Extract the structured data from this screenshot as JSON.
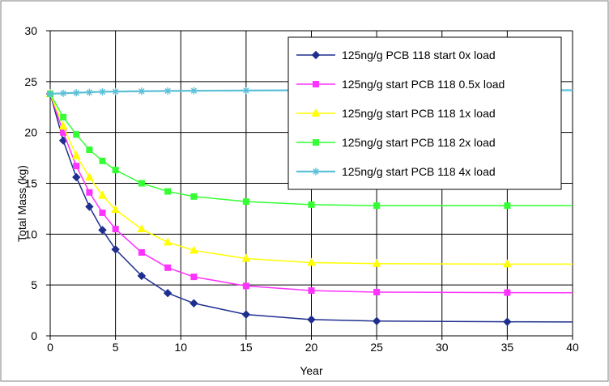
{
  "chart_data": {
    "type": "line",
    "title": "",
    "xlabel": "Year",
    "ylabel": "Total Mass (kg)",
    "xlim": [
      0,
      40
    ],
    "ylim": [
      0,
      30
    ],
    "xticks": [
      0,
      5,
      10,
      15,
      20,
      25,
      30,
      35,
      40
    ],
    "yticks": [
      0,
      5,
      10,
      15,
      20,
      25,
      30
    ],
    "grid": true,
    "legend_position": "top-right",
    "series": [
      {
        "name": "125ng/g PCB 118 start 0x load",
        "color": "#1f2f8f",
        "marker": "diamond",
        "x": [
          0,
          1,
          2,
          3,
          4,
          5,
          7,
          9,
          11,
          15,
          20,
          25,
          35,
          40
        ],
        "y": [
          23.8,
          19.2,
          15.6,
          12.7,
          10.4,
          8.5,
          5.9,
          4.2,
          3.2,
          2.1,
          1.6,
          1.45,
          1.38,
          1.36
        ]
      },
      {
        "name": "125ng/g start PCB 118 0.5x load",
        "color": "#ff33ff",
        "marker": "square",
        "x": [
          0,
          1,
          2,
          3,
          4,
          5,
          7,
          9,
          11,
          15,
          20,
          25,
          35,
          40
        ],
        "y": [
          23.8,
          20.0,
          16.7,
          14.1,
          12.1,
          10.5,
          8.2,
          6.7,
          5.8,
          4.9,
          4.45,
          4.3,
          4.25,
          4.24
        ]
      },
      {
        "name": "125ng/g start PCB 118 1x load",
        "color": "#ffff00",
        "marker": "triangle",
        "x": [
          0,
          1,
          2,
          3,
          4,
          5,
          7,
          9,
          11,
          15,
          20,
          25,
          35,
          40
        ],
        "y": [
          23.8,
          20.6,
          17.7,
          15.6,
          13.8,
          12.4,
          10.5,
          9.2,
          8.4,
          7.6,
          7.2,
          7.1,
          7.05,
          7.05
        ]
      },
      {
        "name": "125ng/g start PCB 118 2x load",
        "color": "#33ff33",
        "marker": "square",
        "x": [
          0,
          1,
          2,
          3,
          4,
          5,
          7,
          9,
          11,
          15,
          20,
          25,
          35,
          40
        ],
        "y": [
          23.8,
          21.5,
          19.8,
          18.3,
          17.2,
          16.3,
          15.0,
          14.2,
          13.7,
          13.2,
          12.9,
          12.8,
          12.8,
          12.8
        ]
      },
      {
        "name": "125ng/g start PCB 118 4x load",
        "color": "#5bc0d8",
        "marker": "asterisk",
        "x": [
          0,
          1,
          2,
          3,
          4,
          5,
          7,
          9,
          11,
          15,
          20,
          25,
          35,
          40
        ],
        "y": [
          23.8,
          23.85,
          23.9,
          23.95,
          24.0,
          24.02,
          24.05,
          24.08,
          24.1,
          24.12,
          24.15,
          24.15,
          24.15,
          24.15
        ]
      }
    ]
  }
}
